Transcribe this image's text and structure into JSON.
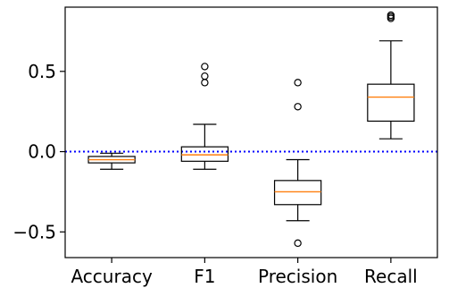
{
  "chart_data": {
    "type": "box",
    "categories": [
      "Accuracy",
      "F1",
      "Precision",
      "Recall"
    ],
    "boxes": [
      {
        "name": "Accuracy",
        "whisker_low": -0.11,
        "q1": -0.07,
        "median": -0.05,
        "q3": -0.03,
        "whisker_high": -0.01,
        "outliers": []
      },
      {
        "name": "F1",
        "whisker_low": -0.11,
        "q1": -0.06,
        "median": -0.02,
        "q3": 0.03,
        "whisker_high": 0.17,
        "outliers": [
          0.43,
          0.47,
          0.53
        ]
      },
      {
        "name": "Precision",
        "whisker_low": -0.43,
        "q1": -0.33,
        "median": -0.25,
        "q3": -0.18,
        "whisker_high": -0.05,
        "outliers": [
          0.28,
          0.43,
          -0.57
        ]
      },
      {
        "name": "Recall",
        "whisker_low": 0.08,
        "q1": 0.19,
        "median": 0.34,
        "q3": 0.42,
        "whisker_high": 0.69,
        "outliers": [
          0.83,
          0.84,
          0.85
        ]
      }
    ],
    "yticks": [
      -0.5,
      0.0,
      0.5
    ],
    "ytick_labels": [
      "−0.5",
      "0.0",
      "0.5"
    ],
    "ylim": [
      -0.66,
      0.9
    ],
    "reference_line": {
      "y": 0.0,
      "style": "dotted",
      "color": "#0000ff"
    },
    "median_color": "#ff7f0e",
    "grid": false,
    "title": "",
    "xlabel": "",
    "ylabel": ""
  }
}
